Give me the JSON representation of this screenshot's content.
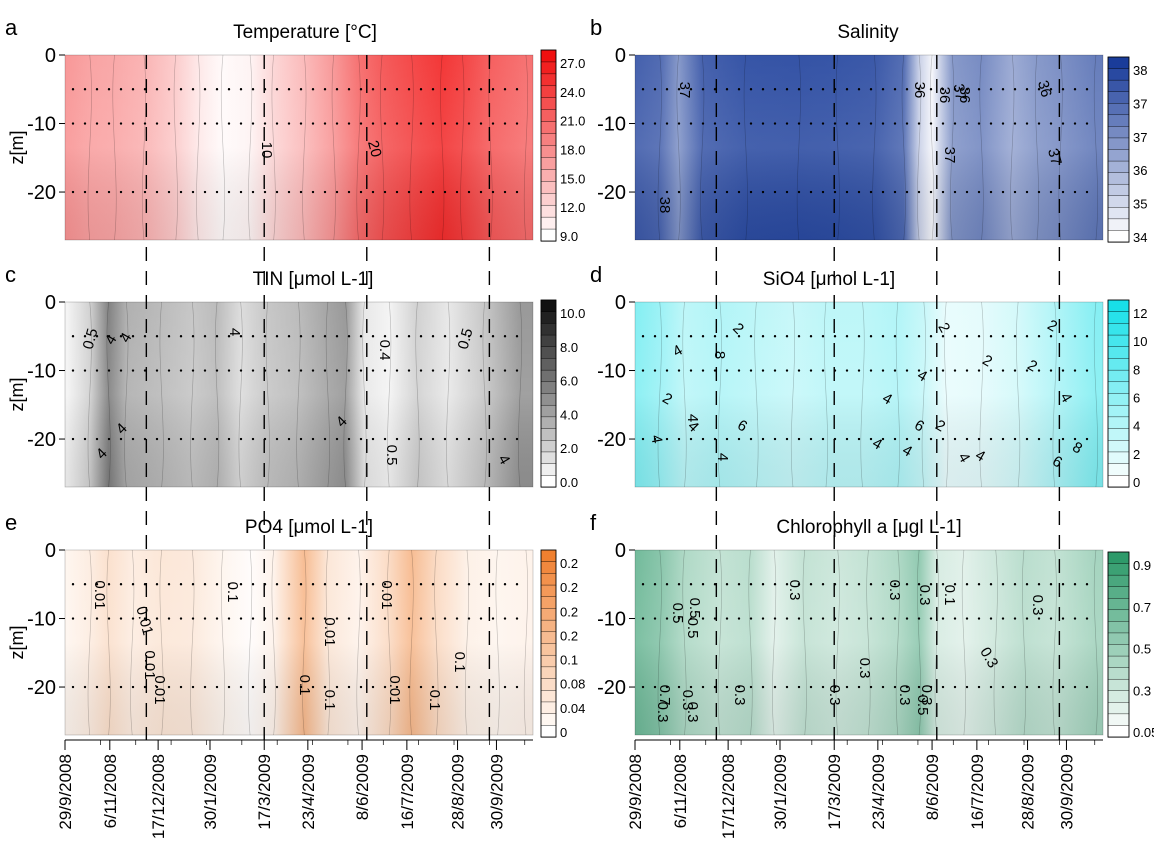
{
  "chart_data": [
    {
      "id": "a",
      "type": "heatmap",
      "panel_letter": "a",
      "title": "Temperature [°C]",
      "ylabel": "z[m]",
      "ytick_labels": [
        "0",
        "-10",
        "-20"
      ],
      "y_ticks": [
        0,
        -10,
        -20
      ],
      "ylim": [
        -27,
        0
      ],
      "colorbar": {
        "ticks": [
          "27.0",
          "24.0",
          "21.0",
          "18.0",
          "15.0",
          "12.0",
          "9.0"
        ],
        "min_color": "#ffffff",
        "max_color": "#f01010"
      },
      "profiles": [
        {
          "t": "2008-10-01",
          "v": 0.45
        },
        {
          "t": "2008-10-20",
          "v": 0.4
        },
        {
          "t": "2008-11-10",
          "v": 0.38
        },
        {
          "t": "2008-12-05",
          "v": 0.33
        },
        {
          "t": "2009-01-01",
          "v": 0.22
        },
        {
          "t": "2009-01-20",
          "v": 0.1
        },
        {
          "t": "2009-02-10",
          "v": 0.02
        },
        {
          "t": "2009-03-05",
          "v": 0.05
        },
        {
          "t": "2009-03-25",
          "v": 0.18
        },
        {
          "t": "2009-04-20",
          "v": 0.3
        },
        {
          "t": "2009-05-15",
          "v": 0.45
        },
        {
          "t": "2009-06-05",
          "v": 0.62
        },
        {
          "t": "2009-06-25",
          "v": 0.72
        },
        {
          "t": "2009-07-20",
          "v": 0.8
        },
        {
          "t": "2009-08-15",
          "v": 0.88
        },
        {
          "t": "2009-09-01",
          "v": 0.82
        },
        {
          "t": "2009-09-25",
          "v": 0.7
        },
        {
          "t": "2009-10-25",
          "v": 0.62
        }
      ],
      "contour_labels": [
        "10",
        "20"
      ]
    },
    {
      "id": "b",
      "type": "heatmap",
      "panel_letter": "b",
      "title": "Salinity",
      "ylabel": "",
      "ytick_labels": [
        "0",
        "-10",
        "-20"
      ],
      "y_ticks": [
        0,
        -10,
        -20
      ],
      "ylim": [
        -27,
        0
      ],
      "colorbar": {
        "ticks": [
          "38",
          "37",
          "37",
          "36",
          "35",
          "34"
        ],
        "min_color": "#ffffff",
        "max_color": "#1a3c9a"
      },
      "profiles": [
        {
          "t": "2008-10-01",
          "v": 0.85
        },
        {
          "t": "2008-10-20",
          "v": 0.8
        },
        {
          "t": "2008-11-05",
          "v": 0.55
        },
        {
          "t": "2008-11-25",
          "v": 0.85
        },
        {
          "t": "2009-01-01",
          "v": 0.92
        },
        {
          "t": "2009-02-15",
          "v": 0.93
        },
        {
          "t": "2009-03-20",
          "v": 0.92
        },
        {
          "t": "2009-04-20",
          "v": 0.9
        },
        {
          "t": "2009-05-15",
          "v": 0.78
        },
        {
          "t": "2009-05-28",
          "v": 0.25
        },
        {
          "t": "2009-06-08",
          "v": 0.05
        },
        {
          "t": "2009-06-25",
          "v": 0.55
        },
        {
          "t": "2009-07-20",
          "v": 0.62
        },
        {
          "t": "2009-08-15",
          "v": 0.45
        },
        {
          "t": "2009-09-05",
          "v": 0.55
        },
        {
          "t": "2009-09-25",
          "v": 0.6
        },
        {
          "t": "2009-10-25",
          "v": 0.7
        }
      ],
      "contour_labels": [
        "37",
        "38",
        "36",
        "36",
        "36",
        "37",
        "37",
        "36",
        "37"
      ]
    },
    {
      "id": "c",
      "type": "heatmap",
      "panel_letter": "c",
      "title": "TIN [μmol L-1]",
      "ylabel": "z[m]",
      "ytick_labels": [
        "0",
        "-10",
        "-20"
      ],
      "y_ticks": [
        0,
        -10,
        -20
      ],
      "ylim": [
        -27,
        0
      ],
      "colorbar": {
        "ticks": [
          "10.0",
          "8.0",
          "6.0",
          "4.0",
          "2.0",
          "0.0"
        ],
        "min_color": "#ffffff",
        "max_color": "#111111"
      },
      "profiles": [
        {
          "t": "2008-10-01",
          "v": 0.05
        },
        {
          "t": "2008-10-20",
          "v": 0.2
        },
        {
          "t": "2008-11-05",
          "v": 0.55
        },
        {
          "t": "2008-11-20",
          "v": 0.35
        },
        {
          "t": "2008-12-20",
          "v": 0.3
        },
        {
          "t": "2009-01-15",
          "v": 0.25
        },
        {
          "t": "2009-02-05",
          "v": 0.3
        },
        {
          "t": "2009-02-25",
          "v": 0.15
        },
        {
          "t": "2009-03-20",
          "v": 0.25
        },
        {
          "t": "2009-04-15",
          "v": 0.3
        },
        {
          "t": "2009-05-10",
          "v": 0.4
        },
        {
          "t": "2009-05-25",
          "v": 0.45
        },
        {
          "t": "2009-06-10",
          "v": 0.1
        },
        {
          "t": "2009-07-01",
          "v": 0.05
        },
        {
          "t": "2009-07-25",
          "v": 0.2
        },
        {
          "t": "2009-08-20",
          "v": 0.1
        },
        {
          "t": "2009-09-20",
          "v": 0.25
        },
        {
          "t": "2009-10-20",
          "v": 0.45
        }
      ],
      "contour_labels": [
        "0.5",
        "4",
        "4",
        "4",
        "4",
        "4",
        "4",
        "0.4",
        "0.5",
        "0.5",
        "4"
      ]
    },
    {
      "id": "d",
      "type": "heatmap",
      "panel_letter": "d",
      "title": "SiO4 [μmol L-1]",
      "ylabel": "",
      "ytick_labels": [
        "0",
        "-10",
        "-20"
      ],
      "y_ticks": [
        0,
        -10,
        -20
      ],
      "ylim": [
        -27,
        0
      ],
      "colorbar": {
        "ticks": [
          "12",
          "10",
          "8",
          "6",
          "4",
          "2",
          "0"
        ],
        "min_color": "#ffffff",
        "max_color": "#18e0e8"
      },
      "profiles": [
        {
          "t": "2008-10-01",
          "v": 0.55
        },
        {
          "t": "2008-10-20",
          "v": 0.45
        },
        {
          "t": "2008-11-10",
          "v": 0.3
        },
        {
          "t": "2008-12-10",
          "v": 0.35
        },
        {
          "t": "2009-01-10",
          "v": 0.3
        },
        {
          "t": "2009-02-10",
          "v": 0.25
        },
        {
          "t": "2009-03-10",
          "v": 0.3
        },
        {
          "t": "2009-04-10",
          "v": 0.3
        },
        {
          "t": "2009-05-10",
          "v": 0.35
        },
        {
          "t": "2009-06-01",
          "v": 0.25
        },
        {
          "t": "2009-06-20",
          "v": 0.1
        },
        {
          "t": "2009-07-20",
          "v": 0.12
        },
        {
          "t": "2009-08-20",
          "v": 0.2
        },
        {
          "t": "2009-09-20",
          "v": 0.35
        },
        {
          "t": "2009-10-25",
          "v": 0.55
        }
      ],
      "contour_labels": [
        "4",
        "4",
        "2",
        "2",
        "4",
        "6",
        "8",
        "4",
        "4",
        "4",
        "4",
        "4",
        "4",
        "6",
        "2",
        "2",
        "4",
        "2",
        "2",
        "2",
        "4",
        "6",
        "8",
        "4"
      ]
    },
    {
      "id": "e",
      "type": "heatmap",
      "panel_letter": "e",
      "title": "PO4 [μmol L-1]",
      "ylabel": "z[m]",
      "ytick_labels": [
        "0",
        "-10",
        "-20"
      ],
      "y_ticks": [
        0,
        -10,
        -20
      ],
      "ylim": [
        -27,
        0
      ],
      "colorbar": {
        "ticks": [
          "0.2",
          "0.2",
          "0.2",
          "0.2",
          "0.1",
          "0.08",
          "0.04",
          "0"
        ],
        "min_color": "#ffffff",
        "max_color": "#f08030"
      },
      "profiles": [
        {
          "t": "2008-10-01",
          "v": 0.08
        },
        {
          "t": "2008-10-20",
          "v": 0.15
        },
        {
          "t": "2008-11-05",
          "v": 0.25
        },
        {
          "t": "2008-11-25",
          "v": 0.15
        },
        {
          "t": "2008-12-20",
          "v": 0.2
        },
        {
          "t": "2009-01-15",
          "v": 0.18
        },
        {
          "t": "2009-02-10",
          "v": 0.08
        },
        {
          "t": "2009-03-05",
          "v": 0.02
        },
        {
          "t": "2009-03-25",
          "v": 0.1
        },
        {
          "t": "2009-04-20",
          "v": 0.55
        },
        {
          "t": "2009-05-10",
          "v": 0.2
        },
        {
          "t": "2009-06-05",
          "v": 0.1
        },
        {
          "t": "2009-07-01",
          "v": 0.3
        },
        {
          "t": "2009-07-20",
          "v": 0.55
        },
        {
          "t": "2009-08-10",
          "v": 0.3
        },
        {
          "t": "2009-09-05",
          "v": 0.12
        },
        {
          "t": "2009-10-01",
          "v": 0.08
        },
        {
          "t": "2009-10-25",
          "v": 0.1
        }
      ],
      "contour_labels": [
        "0.01",
        "0.01",
        "0.01",
        "0.01",
        "0.1",
        "0.01",
        "0.1",
        "0.01",
        "0.01",
        "0.1",
        "0.1",
        "0.1"
      ]
    },
    {
      "id": "f",
      "type": "heatmap",
      "panel_letter": "f",
      "title": "Chlorophyll a [μgl L-1]",
      "ylabel": "",
      "ytick_labels": [
        "0",
        "-10",
        "-20"
      ],
      "y_ticks": [
        0,
        -10,
        -20
      ],
      "ylim": [
        -27,
        0
      ],
      "colorbar": {
        "ticks": [
          "0.9",
          "0.7",
          "0.5",
          "0.3",
          "0.05"
        ],
        "min_color": "#ffffff",
        "max_color": "#2e9a6a"
      },
      "profiles": [
        {
          "t": "2008-10-01",
          "v": 0.7
        },
        {
          "t": "2008-10-20",
          "v": 0.6
        },
        {
          "t": "2008-11-10",
          "v": 0.4
        },
        {
          "t": "2008-12-10",
          "v": 0.3
        },
        {
          "t": "2009-01-05",
          "v": 0.35
        },
        {
          "t": "2009-01-25",
          "v": 0.15
        },
        {
          "t": "2009-02-20",
          "v": 0.3
        },
        {
          "t": "2009-03-20",
          "v": 0.25
        },
        {
          "t": "2009-04-15",
          "v": 0.3
        },
        {
          "t": "2009-05-10",
          "v": 0.4
        },
        {
          "t": "2009-05-28",
          "v": 0.55
        },
        {
          "t": "2009-06-12",
          "v": 0.2
        },
        {
          "t": "2009-07-05",
          "v": 0.15
        },
        {
          "t": "2009-08-01",
          "v": 0.25
        },
        {
          "t": "2009-08-25",
          "v": 0.35
        },
        {
          "t": "2009-09-20",
          "v": 0.3
        },
        {
          "t": "2009-10-25",
          "v": 0.45
        }
      ],
      "contour_labels": [
        "0.5",
        "0.5",
        "0.5",
        "0.3",
        "0.3",
        "0.3",
        "0.3",
        "0.3",
        "0.1",
        "0.3",
        "0.3",
        "0.3",
        "0.3",
        "0.3",
        "0.5",
        "0.7",
        "0.3",
        "0.3",
        "0.3"
      ]
    }
  ],
  "x_axis": {
    "range": [
      "2008-09-29",
      "2009-10-31"
    ],
    "ticks": [
      {
        "t": "2008-09-29",
        "label": "29/9/2008"
      },
      {
        "t": "2008-11-06",
        "label": "6/11/2008"
      },
      {
        "t": "2008-12-17",
        "label": "17/12/2008"
      },
      {
        "t": "2009-01-30",
        "label": "30/1/2009"
      },
      {
        "t": "2009-03-17",
        "label": "17/3/2009"
      },
      {
        "t": "2009-04-23",
        "label": "23/4/2009"
      },
      {
        "t": "2009-06-08",
        "label": "8/6/2009"
      },
      {
        "t": "2009-07-16",
        "label": "16/7/2009"
      },
      {
        "t": "2009-08-28",
        "label": "28/8/2009"
      },
      {
        "t": "2009-09-30",
        "label": "30/9/2009"
      }
    ],
    "dashed_left": [
      "2008-12-07",
      "2009-03-17",
      "2009-06-12",
      "2009-09-24"
    ],
    "dashed_right": [
      "2008-12-07",
      "2009-03-17",
      "2009-06-12",
      "2009-09-24"
    ]
  },
  "sampling_depths": [
    -5,
    -10,
    -20
  ]
}
